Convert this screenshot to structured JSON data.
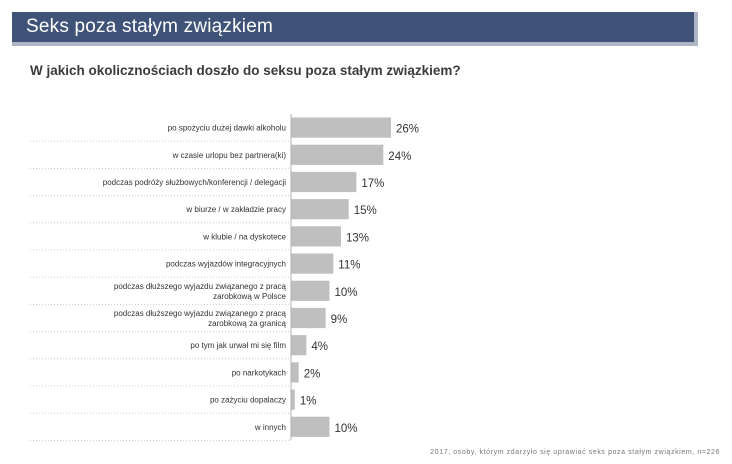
{
  "header": {
    "title": "Seks poza stałym związkiem"
  },
  "question": "W jakich okolicznościach doszło do seksu poza stałym związkiem?",
  "footnote": "2017, osoby, którym zdarzyło się uprawiać seks poza stałym związkiem, n=226",
  "colors": {
    "banner": "#3f5278",
    "bar": "#bfbfbf",
    "text": "#3b3b3b"
  },
  "chart_data": {
    "type": "bar",
    "orientation": "horizontal",
    "title": "W jakich okolicznościach doszło do seksu poza stałym związkiem?",
    "unit": "%",
    "categories": [
      [
        "po spożyciu dużej dawki alkoholu"
      ],
      [
        "w czasie urlopu bez partnera(ki)"
      ],
      [
        "podczas podróży służbowych/konferencji / delegacji"
      ],
      [
        "w biurze / w zakładzie pracy"
      ],
      [
        "w klubie / na dyskotece"
      ],
      [
        "podczas wyjazdów integracyjnych"
      ],
      [
        "podczas dłuższego wyjazdu związanego z pracą",
        "zarobkową w Polsce"
      ],
      [
        "podczas dłuższego wyjazdu związanego z pracą",
        "zarobkową za granicą"
      ],
      [
        "po tym jak urwał mi się film"
      ],
      [
        "po narkotykach"
      ],
      [
        "po zażyciu dopalaczy"
      ],
      [
        "w innych"
      ]
    ],
    "values": [
      26,
      24,
      17,
      15,
      13,
      11,
      10,
      9,
      4,
      2,
      1,
      10
    ],
    "value_labels": [
      "26%",
      "24%",
      "17%",
      "15%",
      "13%",
      "11%",
      "10%",
      "9%",
      "4%",
      "2%",
      "1%",
      "10%"
    ],
    "xlim": [
      0,
      30
    ]
  }
}
